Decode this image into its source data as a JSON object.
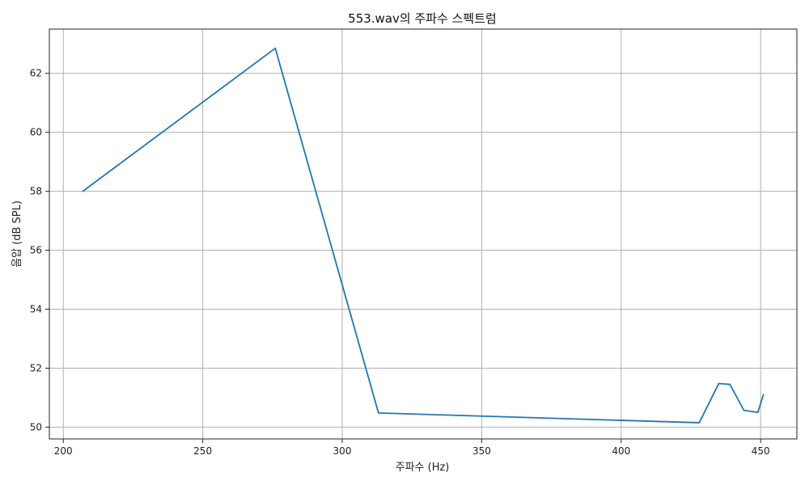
{
  "chart_data": {
    "type": "line",
    "title": "553.wav의 주파수 스펙트럼",
    "xlabel": "주파수 (Hz)",
    "ylabel": "음압 (dB SPL)",
    "xlim": [
      195,
      463
    ],
    "ylim": [
      49.6,
      63.5
    ],
    "xticks": [
      200,
      250,
      300,
      350,
      400,
      450
    ],
    "yticks": [
      50,
      52,
      54,
      56,
      58,
      60,
      62
    ],
    "grid": true,
    "series": [
      {
        "color": "#1f77b4",
        "x": [
          207,
          276,
          313,
          428,
          435,
          439,
          444,
          449,
          451
        ],
        "y": [
          58.0,
          62.85,
          50.48,
          50.15,
          51.48,
          51.45,
          50.57,
          50.5,
          51.1
        ]
      }
    ]
  }
}
